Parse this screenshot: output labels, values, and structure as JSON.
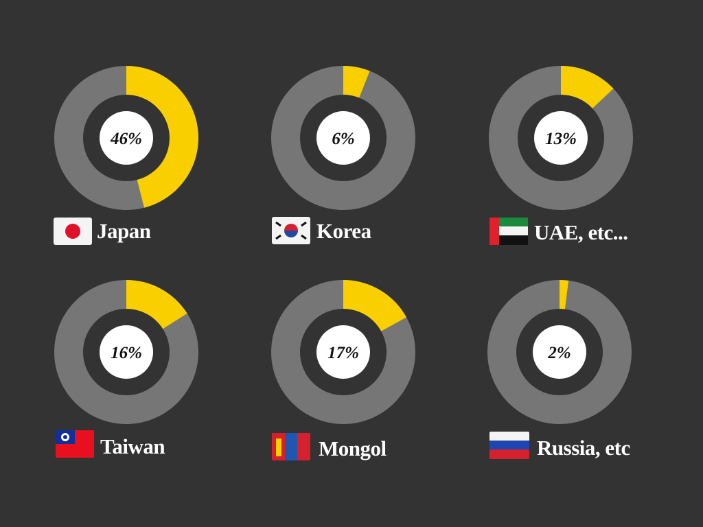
{
  "chart_data": [
    {
      "type": "donut",
      "title": "Japan",
      "values": [
        46
      ],
      "value_labels": [
        "46%"
      ],
      "color": "#f9cf00",
      "track_color": "#767676"
    },
    {
      "type": "donut",
      "title": "Korea",
      "values": [
        6
      ],
      "value_labels": [
        "6%"
      ],
      "color": "#f9cf00",
      "track_color": "#767676"
    },
    {
      "type": "donut",
      "title": "UAE, etc...",
      "values": [
        13
      ],
      "value_labels": [
        "13%"
      ],
      "color": "#f9cf00",
      "track_color": "#767676"
    },
    {
      "type": "donut",
      "title": "Taiwan",
      "values": [
        16
      ],
      "value_labels": [
        "16%"
      ],
      "color": "#f9cf00",
      "track_color": "#767676"
    },
    {
      "type": "donut",
      "title": "Mongol",
      "values": [
        17
      ],
      "value_labels": [
        "17%"
      ],
      "color": "#f9cf00",
      "track_color": "#767676"
    },
    {
      "type": "donut",
      "title": "Russia, etc",
      "values": [
        2
      ],
      "value_labels": [
        "2%"
      ],
      "color": "#f9cf00",
      "track_color": "#767676"
    }
  ]
}
